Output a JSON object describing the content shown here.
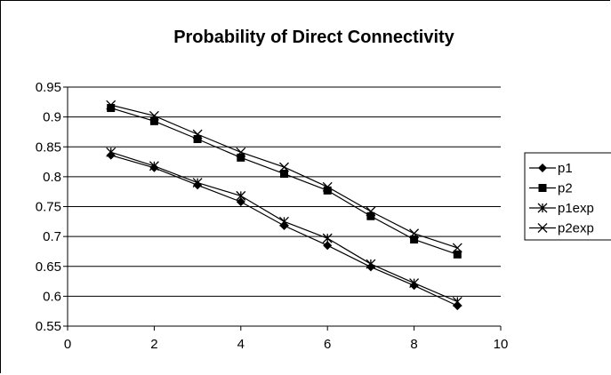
{
  "chart_data": {
    "type": "line",
    "title": "Probability of Direct Connectivity",
    "xlabel": "",
    "ylabel": "",
    "xlim": [
      0,
      10
    ],
    "ylim": [
      0.55,
      0.95
    ],
    "x_ticks": [
      "0",
      "2",
      "4",
      "6",
      "8",
      "10"
    ],
    "y_ticks": [
      "0.95",
      "0.9",
      "0.85",
      "0.8",
      "0.75",
      "0.7",
      "0.65",
      "0.6",
      "0.55"
    ],
    "grid": "horizontal",
    "legend_position": "right",
    "series": [
      {
        "name": "p1",
        "marker": "diamond",
        "x": [
          1,
          2,
          3,
          4,
          5,
          6,
          7,
          8,
          9
        ],
        "values": [
          0.836,
          0.815,
          0.786,
          0.758,
          0.718,
          0.685,
          0.649,
          0.618,
          0.584
        ]
      },
      {
        "name": "p2",
        "marker": "square",
        "x": [
          1,
          2,
          3,
          4,
          5,
          6,
          7,
          8,
          9
        ],
        "values": [
          0.915,
          0.893,
          0.863,
          0.832,
          0.805,
          0.777,
          0.734,
          0.695,
          0.67
        ]
      },
      {
        "name": "p1exp",
        "marker": "asterisk",
        "x": [
          1,
          2,
          3,
          4,
          5,
          6,
          7,
          8,
          9
        ],
        "values": [
          0.841,
          0.818,
          0.79,
          0.768,
          0.725,
          0.697,
          0.654,
          0.622,
          0.591
        ]
      },
      {
        "name": "p2exp",
        "marker": "x",
        "x": [
          1,
          2,
          3,
          4,
          5,
          6,
          7,
          8,
          9
        ],
        "values": [
          0.92,
          0.902,
          0.871,
          0.841,
          0.816,
          0.783,
          0.742,
          0.705,
          0.681
        ]
      }
    ]
  }
}
